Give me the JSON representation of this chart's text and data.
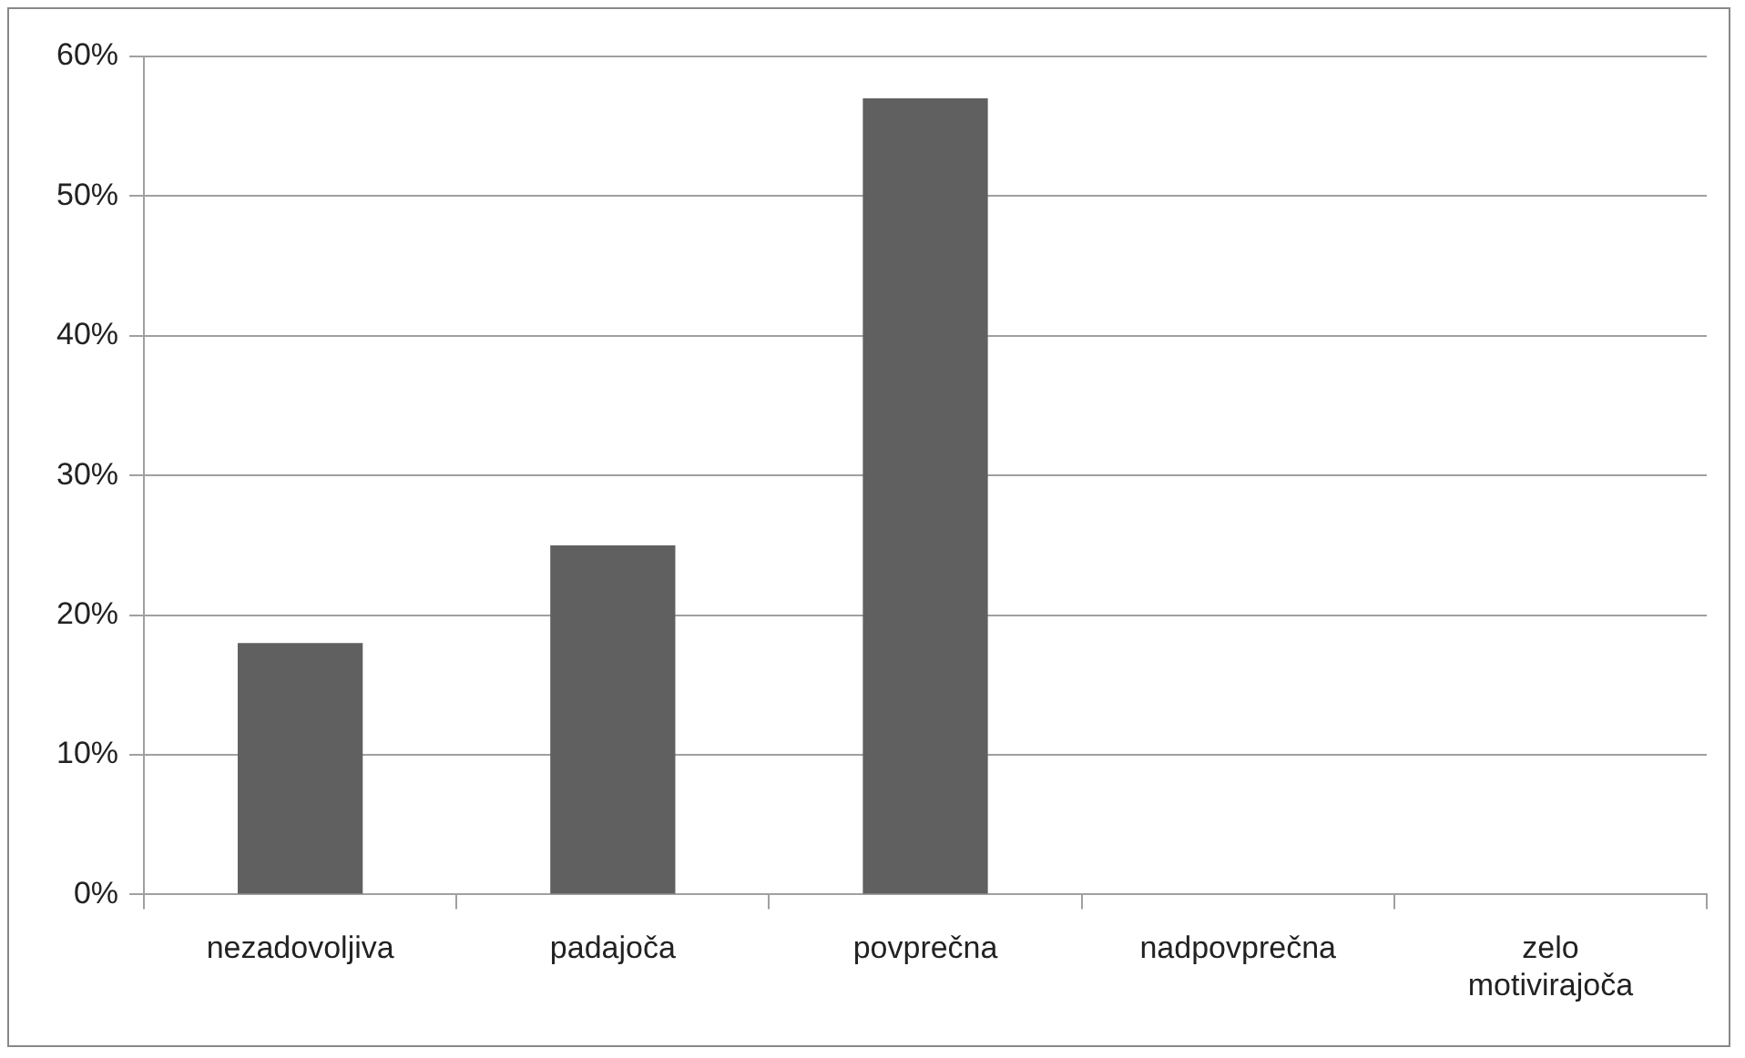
{
  "chart_data": {
    "type": "bar",
    "categories": [
      "nezadovoljiva",
      "padajoča",
      "povprečna",
      "nadpovprečna",
      "zelo motivirajoča"
    ],
    "values": [
      18,
      25,
      57,
      0,
      0
    ],
    "color": "#606060",
    "ylim": [
      0,
      60
    ],
    "yticks": [
      {
        "value": 0,
        "label": "0%"
      },
      {
        "value": 10,
        "label": "10%"
      },
      {
        "value": 20,
        "label": "20%"
      },
      {
        "value": 30,
        "label": "30%"
      },
      {
        "value": 40,
        "label": "40%"
      },
      {
        "value": 50,
        "label": "50%"
      },
      {
        "value": 60,
        "label": "60%"
      }
    ],
    "grid": "y",
    "legend": false
  }
}
